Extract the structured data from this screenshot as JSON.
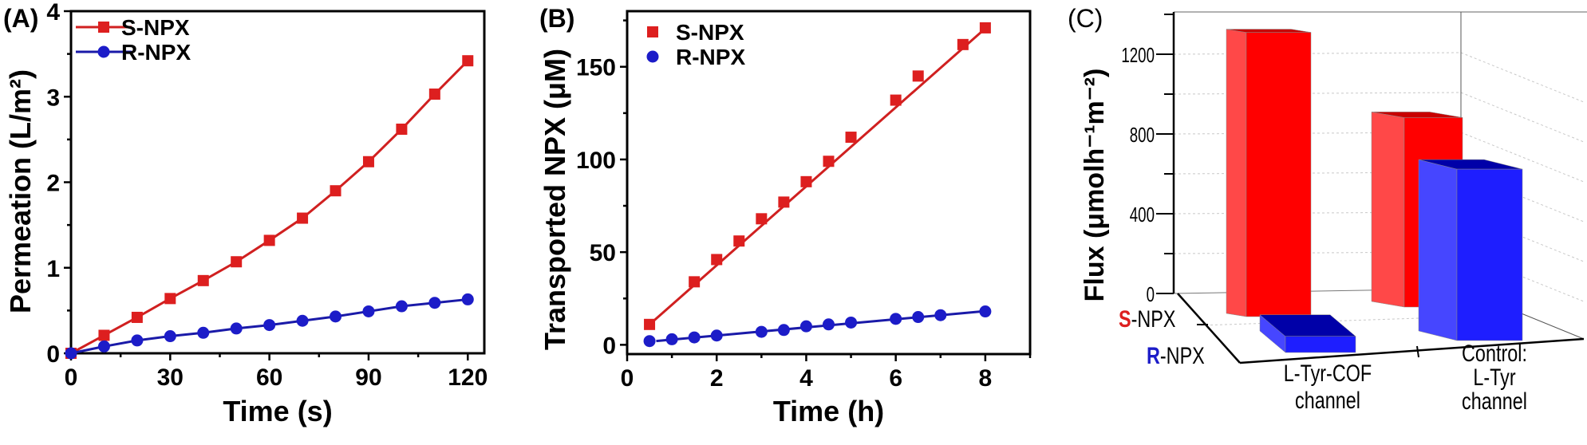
{
  "colors": {
    "s_npx": "#dd1f1f",
    "r_npx": "#1c1cc8",
    "axis": "#000000"
  },
  "chart_data": [
    {
      "panel_label": "(A)",
      "type": "line",
      "xlabel": "Time (s)",
      "ylabel": "Permeation (L/m²)",
      "xlim": [
        0,
        125
      ],
      "ylim": [
        0,
        4
      ],
      "xticks": [
        0,
        30,
        60,
        90,
        120
      ],
      "yticks": [
        0,
        1,
        2,
        3,
        4
      ],
      "legend_position": "top-left",
      "series": [
        {
          "name": "S-NPX",
          "marker": "square",
          "x": [
            0,
            10,
            20,
            30,
            40,
            50,
            60,
            70,
            80,
            90,
            100,
            110,
            120
          ],
          "y": [
            0,
            0.21,
            0.42,
            0.64,
            0.85,
            1.07,
            1.32,
            1.58,
            1.9,
            2.24,
            2.62,
            3.03,
            3.42
          ]
        },
        {
          "name": "R-NPX",
          "marker": "circle",
          "x": [
            0,
            10,
            20,
            30,
            40,
            50,
            60,
            70,
            80,
            90,
            100,
            110,
            120
          ],
          "y": [
            0,
            0.08,
            0.15,
            0.2,
            0.24,
            0.29,
            0.33,
            0.38,
            0.43,
            0.49,
            0.55,
            0.59,
            0.63
          ]
        }
      ]
    },
    {
      "panel_label": "(B)",
      "type": "scatter",
      "xlabel": "Time (h)",
      "ylabel": "Transported NPX (μM)",
      "xlim": [
        0,
        9
      ],
      "ylim": [
        -5,
        180
      ],
      "xticks": [
        0,
        2,
        4,
        6,
        8
      ],
      "yticks": [
        0,
        50,
        100,
        150
      ],
      "legend_position": "top-left",
      "series": [
        {
          "name": "S-NPX",
          "marker": "square",
          "x": [
            0.5,
            1.5,
            2,
            2.5,
            3,
            3.5,
            4,
            4.5,
            5,
            6,
            6.5,
            7.5,
            8
          ],
          "y": [
            11,
            34,
            46,
            56,
            68,
            77,
            88,
            99,
            112,
            132,
            145,
            162,
            171
          ],
          "error": [
            1,
            1,
            1.5,
            2,
            1.5,
            2.5,
            1.5,
            2,
            1,
            1.5,
            1.5,
            1,
            2
          ],
          "fit": {
            "slope": 21.3,
            "intercept": 0.3,
            "x_range": [
              0.5,
              8
            ]
          }
        },
        {
          "name": "R-NPX",
          "marker": "circle",
          "x": [
            0.5,
            1,
            1.5,
            2,
            3,
            3.5,
            4,
            4.5,
            5,
            6,
            6.5,
            7,
            8
          ],
          "y": [
            2,
            3,
            4,
            5,
            7,
            8,
            10,
            11,
            12,
            14,
            15,
            16,
            18
          ],
          "fit": {
            "slope": 2.2,
            "intercept": 0.6,
            "x_range": [
              0.65,
              8
            ]
          }
        }
      ]
    },
    {
      "panel_label": "(C)",
      "type": "bar",
      "ylabel": "Flux (μmolh⁻¹m⁻²)",
      "yticks": [
        0,
        400,
        800,
        1200
      ],
      "categories": [
        [
          "L-Tyr-COF",
          "channel"
        ],
        [
          "Control:",
          "L-Tyr",
          "channel"
        ]
      ],
      "rows": [
        "S-NPX",
        "R-NPX"
      ],
      "series": [
        {
          "name": "S-NPX",
          "values": [
            1320,
            880
          ]
        },
        {
          "name": "R-NPX",
          "values": [
            70,
            700
          ]
        }
      ]
    }
  ]
}
